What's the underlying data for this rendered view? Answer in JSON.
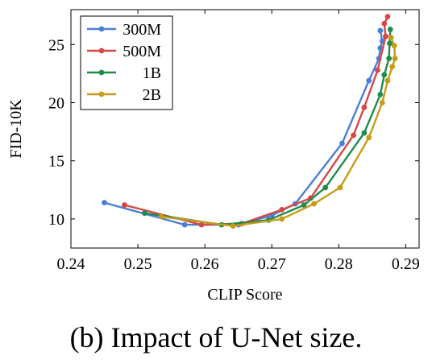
{
  "caption": "(b) Impact of U-Net size.",
  "chart_data": {
    "type": "line",
    "xlabel": "CLIP Score",
    "ylabel": "FID-10K",
    "xlim": [
      0.24,
      0.292
    ],
    "ylim": [
      7.5,
      28
    ],
    "xticks": [
      0.24,
      0.25,
      0.26,
      0.27,
      0.28,
      0.29
    ],
    "xtick_labels": [
      "0.24",
      "0.25",
      "0.26",
      "0.27",
      "0.28",
      "0.29"
    ],
    "yticks": [
      10,
      15,
      20,
      25
    ],
    "ytick_labels": [
      "10",
      "15",
      "20",
      "25"
    ],
    "grid": false,
    "legend_position": "top-left",
    "series": [
      {
        "name": "300M",
        "color": "#4a7fd8",
        "points": [
          [
            0.245,
            11.4
          ],
          [
            0.257,
            9.5
          ],
          [
            0.265,
            9.5
          ],
          [
            0.27,
            10.3
          ],
          [
            0.2735,
            11.3
          ],
          [
            0.2805,
            16.5
          ],
          [
            0.2845,
            21.9
          ],
          [
            0.286,
            23.8
          ],
          [
            0.2862,
            24.7
          ],
          [
            0.2865,
            25.3
          ],
          [
            0.2862,
            26.2
          ]
        ]
      },
      {
        "name": "500M",
        "color": "#d44848",
        "points": [
          [
            0.248,
            11.2
          ],
          [
            0.2595,
            9.5
          ],
          [
            0.2655,
            9.6
          ],
          [
            0.2715,
            10.8
          ],
          [
            0.2758,
            11.8
          ],
          [
            0.2822,
            17.2
          ],
          [
            0.2838,
            19.6
          ],
          [
            0.2858,
            22.8
          ],
          [
            0.287,
            25.7
          ],
          [
            0.2868,
            26.8
          ],
          [
            0.2873,
            27.4
          ]
        ]
      },
      {
        "name": "1B",
        "color": "#1f8b4c",
        "points": [
          [
            0.251,
            10.5
          ],
          [
            0.2625,
            9.5
          ],
          [
            0.2695,
            9.9
          ],
          [
            0.2748,
            11.2
          ],
          [
            0.278,
            12.7
          ],
          [
            0.2838,
            17.4
          ],
          [
            0.2862,
            20.7
          ],
          [
            0.2868,
            22.4
          ],
          [
            0.2875,
            23.8
          ],
          [
            0.2876,
            25.1
          ],
          [
            0.2877,
            26.3
          ]
        ]
      },
      {
        "name": "2B",
        "color": "#c89a1a",
        "points": [
          [
            0.2535,
            10.2
          ],
          [
            0.2642,
            9.4
          ],
          [
            0.2715,
            10.0
          ],
          [
            0.2763,
            11.3
          ],
          [
            0.2802,
            12.7
          ],
          [
            0.2845,
            17.0
          ],
          [
            0.2865,
            20.0
          ],
          [
            0.2873,
            21.9
          ],
          [
            0.288,
            23.1
          ],
          [
            0.2884,
            23.8
          ],
          [
            0.2883,
            24.9
          ],
          [
            0.2878,
            25.6
          ]
        ]
      }
    ]
  }
}
